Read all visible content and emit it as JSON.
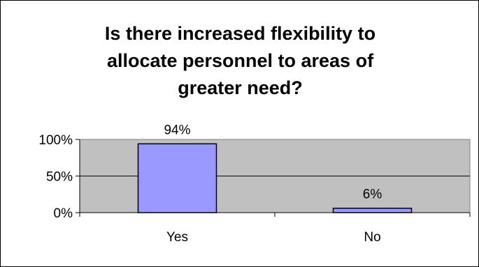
{
  "chart_data": {
    "type": "bar",
    "title": "Is there increased flexibility to allocate personnel to areas of greater need?",
    "title_lines": [
      "Is there increased flexibility to",
      "allocate personnel to areas of",
      "greater need?"
    ],
    "categories": [
      "Yes",
      "No"
    ],
    "values": [
      94,
      6
    ],
    "data_labels": [
      "94%",
      "6%"
    ],
    "ylim": [
      0,
      100
    ],
    "yticks": [
      0,
      50,
      100
    ],
    "ytick_labels": [
      "0%",
      "50%",
      "100%"
    ],
    "xlabel": "",
    "ylabel": "",
    "grid": true,
    "legend": "none",
    "colors": {
      "bar_fill": "#9999ff",
      "plot_background": "#c0c0c0",
      "bar_stroke": "#000000"
    }
  }
}
